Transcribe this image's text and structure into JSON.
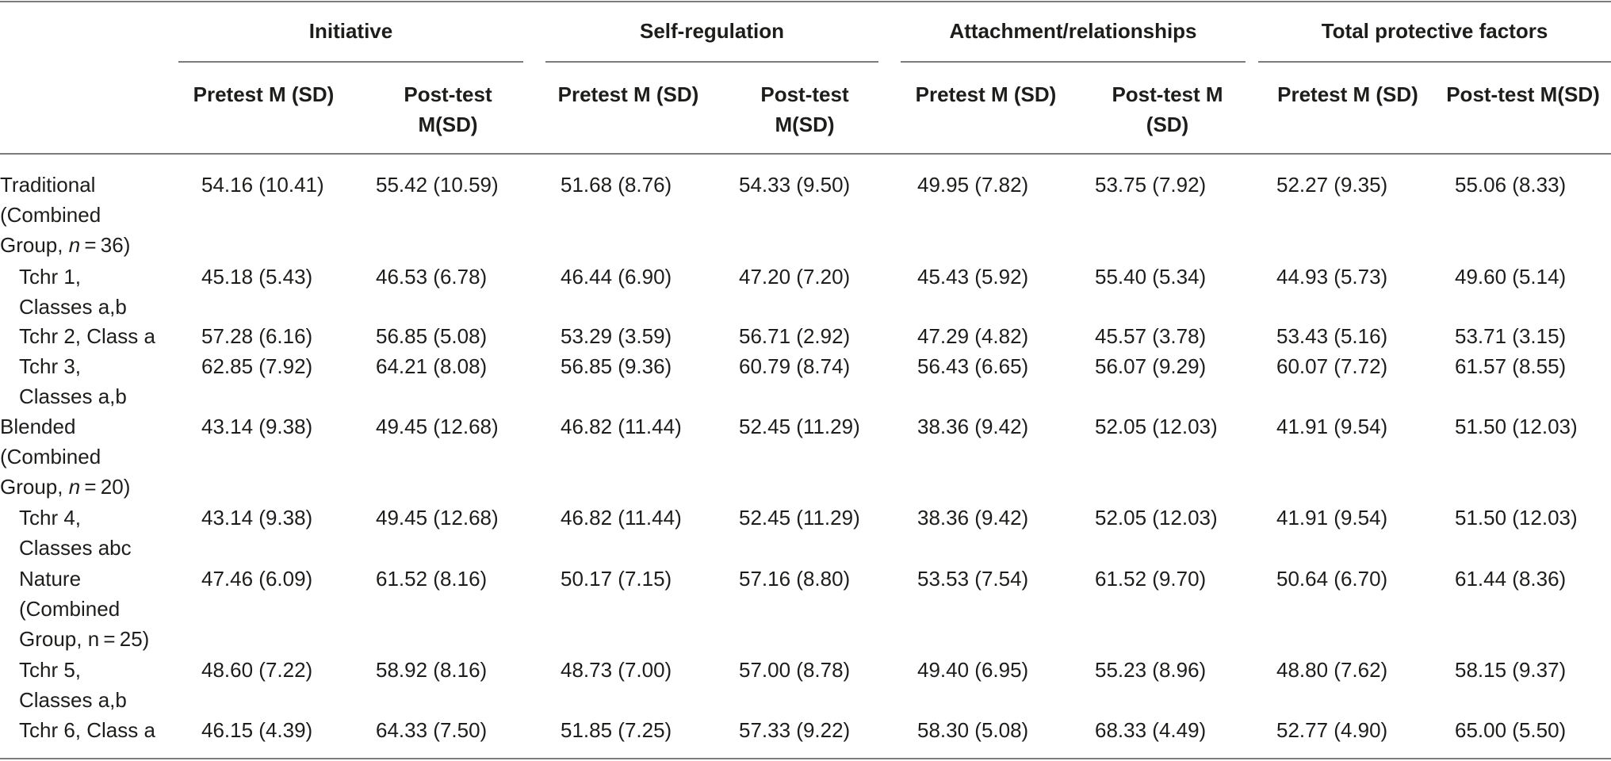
{
  "groups": [
    "Initiative",
    "Self-regulation",
    "Attachment/relationships",
    "Total protective factors"
  ],
  "columns": [
    [
      "Pretest M (SD)"
    ],
    [
      "Post-test",
      "M(SD)"
    ],
    [
      "Pretest M (SD)"
    ],
    [
      "Post-test",
      "M(SD)"
    ],
    [
      "Pretest M (SD)"
    ],
    [
      "Post-test M",
      "(SD)"
    ],
    [
      "Pretest M (SD)"
    ],
    [
      "Post-test M(SD)"
    ]
  ],
  "rows": [
    {
      "label": [
        "Traditional",
        "(Combined",
        "Group, n = 36)"
      ],
      "values": [
        "54.16 (10.41)",
        "55.42 (10.59)",
        "51.68 (8.76)",
        "54.33 (9.50)",
        "49.95 (7.82)",
        "53.75 (7.92)",
        "52.27 (9.35)",
        "55.06 (8.33)"
      ]
    },
    {
      "label": [
        "Tchr 1,",
        "Classes a,b"
      ],
      "values": [
        "45.18 (5.43)",
        "46.53 (6.78)",
        "46.44 (6.90)",
        "47.20 (7.20)",
        "45.43 (5.92)",
        "55.40 (5.34)",
        "44.93 (5.73)",
        "49.60 (5.14)"
      ]
    },
    {
      "label": [
        "Tchr 2, Class a"
      ],
      "values": [
        "57.28 (6.16)",
        "56.85 (5.08)",
        "53.29 (3.59)",
        "56.71 (2.92)",
        "47.29 (4.82)",
        "45.57 (3.78)",
        "53.43 (5.16)",
        "53.71 (3.15)"
      ]
    },
    {
      "label": [
        "Tchr 3,",
        "Classes a,b"
      ],
      "values": [
        "62.85 (7.92)",
        "64.21 (8.08)",
        "56.85 (9.36)",
        "60.79 (8.74)",
        "56.43 (6.65)",
        "56.07 (9.29)",
        "60.07 (7.72)",
        "61.57 (8.55)"
      ]
    },
    {
      "label": [
        "Blended",
        "(Combined",
        "Group, n = 20)"
      ],
      "values": [
        "43.14 (9.38)",
        "49.45 (12.68)",
        "46.82 (11.44)",
        "52.45 (11.29)",
        "38.36 (9.42)",
        "52.05 (12.03)",
        "41.91 (9.54)",
        "51.50 (12.03)"
      ]
    },
    {
      "label": [
        "Tchr 4,",
        "Classes abc"
      ],
      "values": [
        "43.14 (9.38)",
        "49.45 (12.68)",
        "46.82 (11.44)",
        "52.45 (11.29)",
        "38.36 (9.42)",
        "52.05 (12.03)",
        "41.91 (9.54)",
        "51.50 (12.03)"
      ]
    },
    {
      "label": [
        "Nature",
        "(Combined",
        "Group, n = 25)"
      ],
      "values": [
        "47.46 (6.09)",
        "61.52 (8.16)",
        "50.17 (7.15)",
        "57.16 (8.80)",
        "53.53 (7.54)",
        "61.52 (9.70)",
        "50.64 (6.70)",
        "61.44 (8.36)"
      ]
    },
    {
      "label": [
        "Tchr 5,",
        "Classes a,b"
      ],
      "values": [
        "48.60 (7.22)",
        "58.92 (8.16)",
        "48.73 (7.00)",
        "57.00 (8.78)",
        "49.40 (6.95)",
        "55.23 (8.96)",
        "48.80 (7.62)",
        "58.15 (9.37)"
      ]
    },
    {
      "label": [
        "Tchr 6, Class a"
      ],
      "values": [
        "46.15 (4.39)",
        "64.33 (7.50)",
        "51.85 (7.25)",
        "57.33 (9.22)",
        "58.30 (5.08)",
        "68.33 (4.49)",
        "52.77 (4.90)",
        "65.00 (5.50)"
      ]
    }
  ]
}
